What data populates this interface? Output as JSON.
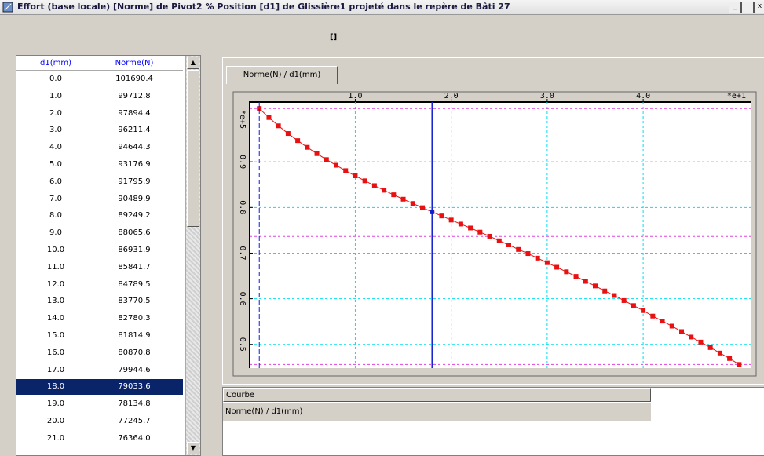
{
  "window": {
    "title": "Effort (base locale) [Norme] de Pivot2 % Position [d1] de Glissière1 projeté dans le repère de Bâti 27",
    "caption": "[]"
  },
  "table": {
    "headers": [
      "d1(mm)",
      "Norme(N)"
    ],
    "selected_row": 18,
    "rows": [
      [
        "0.0",
        "101690.4"
      ],
      [
        "1.0",
        "99712.8"
      ],
      [
        "2.0",
        "97894.4"
      ],
      [
        "3.0",
        "96211.4"
      ],
      [
        "4.0",
        "94644.3"
      ],
      [
        "5.0",
        "93176.9"
      ],
      [
        "6.0",
        "91795.9"
      ],
      [
        "7.0",
        "90489.9"
      ],
      [
        "8.0",
        "89249.2"
      ],
      [
        "9.0",
        "88065.6"
      ],
      [
        "10.0",
        "86931.9"
      ],
      [
        "11.0",
        "85841.7"
      ],
      [
        "12.0",
        "84789.5"
      ],
      [
        "13.0",
        "83770.5"
      ],
      [
        "14.0",
        "82780.3"
      ],
      [
        "15.0",
        "81814.9"
      ],
      [
        "16.0",
        "80870.8"
      ],
      [
        "17.0",
        "79944.6"
      ],
      [
        "18.0",
        "79033.6"
      ],
      [
        "19.0",
        "78134.8"
      ],
      [
        "20.0",
        "77245.7"
      ],
      [
        "21.0",
        "76364.0"
      ]
    ]
  },
  "tab": "Norme(N) / d1(mm)",
  "legend_panel": {
    "header": "Courbe",
    "rows": [
      "Norme(N) / d1(mm)"
    ]
  },
  "chart_data": {
    "type": "line",
    "x": [
      0,
      1,
      2,
      3,
      4,
      5,
      6,
      7,
      8,
      9,
      10,
      11,
      12,
      13,
      14,
      15,
      16,
      17,
      18,
      19,
      20,
      21,
      22,
      23,
      24,
      25,
      26,
      27,
      28,
      29,
      30,
      31,
      32,
      33,
      34,
      35,
      36,
      37,
      38,
      39,
      40,
      41,
      42,
      43,
      44,
      45,
      46,
      47,
      48,
      49,
      50
    ],
    "series": [
      {
        "name": "Norme(N) / d1(mm)",
        "color": "#e81010",
        "values": [
          101690.4,
          99712.8,
          97894.4,
          96211.4,
          94644.3,
          93176.9,
          91795.9,
          90489.9,
          89249.2,
          88065.6,
          86931.9,
          85841.7,
          84789.5,
          83770.5,
          82780.3,
          81814.9,
          80870.8,
          79944.6,
          79033.6,
          78134.8,
          77245.7,
          76364.0,
          75500,
          74600,
          73700,
          72700,
          71800,
          70800,
          69900,
          68900,
          67900,
          66900,
          65900,
          64900,
          63800,
          62800,
          61700,
          60700,
          59600,
          58500,
          57400,
          56200,
          55100,
          54000,
          52800,
          51600,
          50500,
          49300,
          48100,
          46900,
          45600
        ]
      }
    ],
    "xlim": [
      -1,
      51.2
    ],
    "ylim": [
      44800,
      103100
    ],
    "xticks": [
      {
        "value": 10,
        "label": "1.0"
      },
      {
        "value": 20,
        "label": "2.0"
      },
      {
        "value": 30,
        "label": "3.0"
      },
      {
        "value": 40,
        "label": "4.0"
      }
    ],
    "yticks": [
      {
        "value": 50000,
        "label": "0.5"
      },
      {
        "value": 60000,
        "label": "0.6"
      },
      {
        "value": 70000,
        "label": "0.7"
      },
      {
        "value": 80000,
        "label": "0.8"
      },
      {
        "value": 90000,
        "label": "0.9"
      }
    ],
    "x_multiplier": "*e+1",
    "y_multiplier": "*e+5",
    "cursor_x": 18,
    "grid": true
  }
}
